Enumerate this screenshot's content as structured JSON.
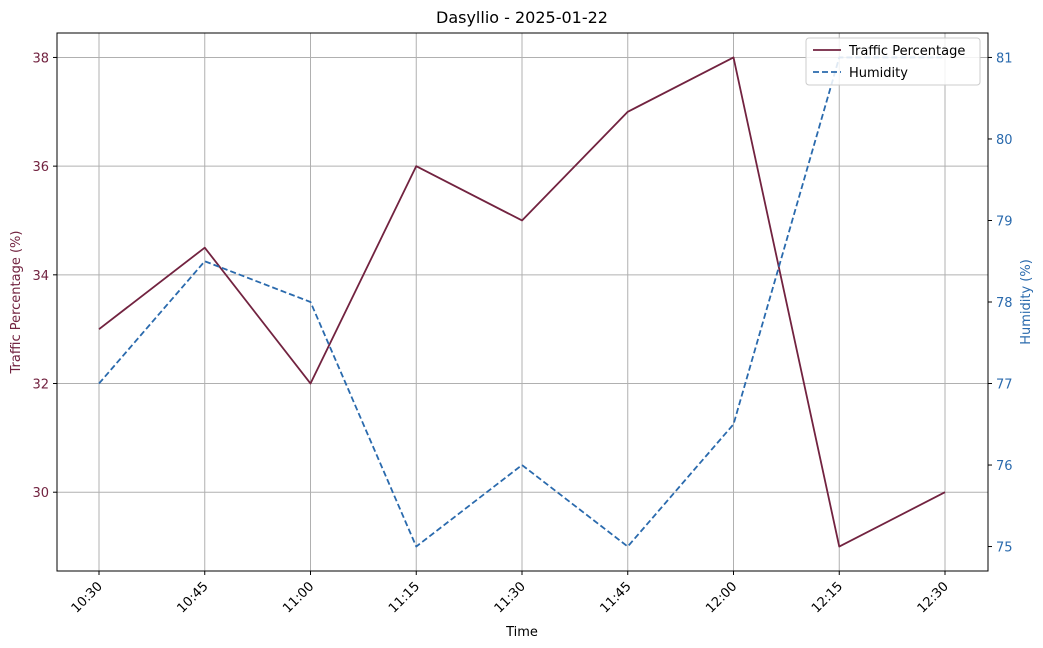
{
  "chart_data": {
    "type": "line",
    "title": "Dasyllio - 2025-01-22",
    "xlabel": "Time",
    "categories": [
      "10:30",
      "10:45",
      "11:00",
      "11:15",
      "11:30",
      "11:45",
      "12:00",
      "12:15",
      "12:30"
    ],
    "series": [
      {
        "name": "Traffic Percentage",
        "axis": "left",
        "color": "#722340",
        "style": "solid",
        "values": [
          33,
          34.5,
          32,
          36,
          35,
          37,
          38,
          29,
          30
        ]
      },
      {
        "name": "Humidity",
        "axis": "right",
        "color": "#2a6aad",
        "style": "dashed",
        "values": [
          77,
          78.5,
          78,
          75,
          76,
          75,
          76.5,
          81,
          81
        ]
      }
    ],
    "y_left": {
      "label": "Traffic Percentage (%)",
      "color": "#722340",
      "range": [
        28.55,
        38.45
      ],
      "ticks": [
        "30",
        "32",
        "34",
        "36",
        "38"
      ]
    },
    "y_right": {
      "label": "Humidity (%)",
      "color": "#2a6aad",
      "range": [
        74.7,
        81.3
      ],
      "ticks": [
        "75",
        "76",
        "77",
        "78",
        "79",
        "80",
        "81"
      ]
    },
    "grid": true,
    "legend_position": "top-right"
  }
}
